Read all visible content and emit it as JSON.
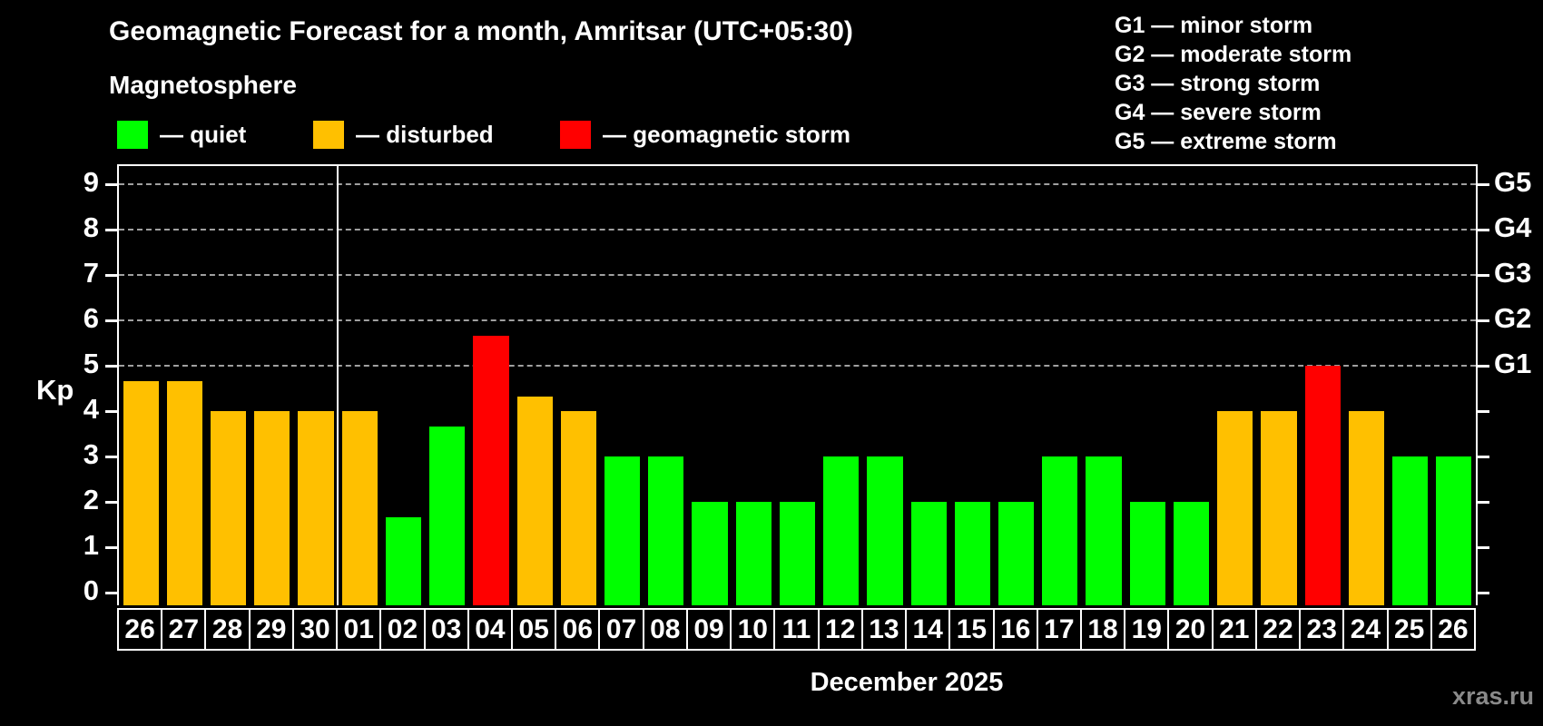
{
  "title": "Geomagnetic Forecast for a month, Amritsar (UTC+05:30)",
  "subtitle": "Magnetosphere",
  "legend": {
    "items": [
      {
        "label": "— quiet",
        "status": "quiet",
        "color": "#00ff00"
      },
      {
        "label": "— disturbed",
        "status": "disturbed",
        "color": "#ffc000"
      },
      {
        "label": "— geomagnetic storm",
        "status": "storm",
        "color": "#ff0000"
      }
    ]
  },
  "g_scale_legend": [
    "G1 — minor storm",
    "G2 — moderate storm",
    "G3 — strong storm",
    "G4 — severe storm",
    "G5 — extreme storm"
  ],
  "watermark": "xras.ru",
  "chart_data": {
    "type": "bar",
    "title": "Geomagnetic Forecast for a month, Amritsar (UTC+05:30)",
    "subtitle": "Magnetosphere",
    "xlabel": "December 2025",
    "ylabel": "Kp",
    "ylim": [
      0,
      9.4
    ],
    "yticks": [
      0,
      1,
      2,
      3,
      4,
      5,
      6,
      7,
      8,
      9
    ],
    "gridlines_at": [
      5,
      6,
      7,
      8,
      9
    ],
    "grid": "dashed horizontal at Kp 5-9",
    "legend_position": "top",
    "right_axis": [
      {
        "label": "G1",
        "kp": 5
      },
      {
        "label": "G2",
        "kp": 6
      },
      {
        "label": "G3",
        "kp": 7
      },
      {
        "label": "G4",
        "kp": 8
      },
      {
        "label": "G5",
        "kp": 9
      }
    ],
    "month_separator_after_index": 4,
    "categories": [
      "26",
      "27",
      "28",
      "29",
      "30",
      "01",
      "02",
      "03",
      "04",
      "05",
      "06",
      "07",
      "08",
      "09",
      "10",
      "11",
      "12",
      "13",
      "14",
      "15",
      "16",
      "17",
      "18",
      "19",
      "20",
      "21",
      "22",
      "23",
      "24",
      "25",
      "26"
    ],
    "values": [
      4.67,
      4.67,
      4,
      4,
      4,
      4,
      1.67,
      3.67,
      5.67,
      4.33,
      4,
      3,
      3,
      2,
      2,
      2,
      3,
      3,
      2,
      2,
      2,
      3,
      3,
      2,
      2,
      4,
      4,
      5,
      4,
      3,
      3
    ],
    "statuses": [
      "disturbed",
      "disturbed",
      "disturbed",
      "disturbed",
      "disturbed",
      "disturbed",
      "quiet",
      "quiet",
      "storm",
      "disturbed",
      "disturbed",
      "quiet",
      "quiet",
      "quiet",
      "quiet",
      "quiet",
      "quiet",
      "quiet",
      "quiet",
      "quiet",
      "quiet",
      "quiet",
      "quiet",
      "quiet",
      "quiet",
      "disturbed",
      "disturbed",
      "storm",
      "disturbed",
      "quiet",
      "quiet"
    ],
    "colors": {
      "quiet": "#00ff00",
      "disturbed": "#ffc000",
      "storm": "#ff0000"
    }
  }
}
